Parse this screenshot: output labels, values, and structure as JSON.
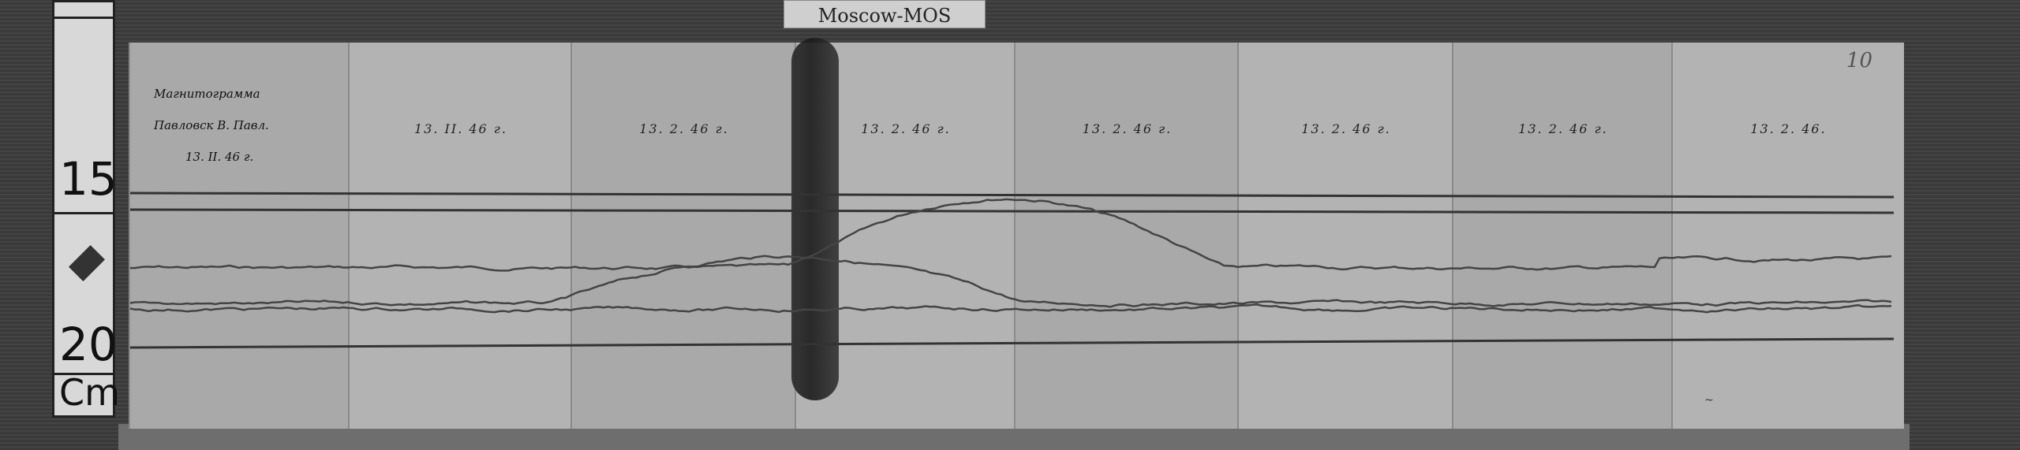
{
  "scale_ruler": {
    "marks": [
      "15",
      "20"
    ],
    "unit": "Cm"
  },
  "station_label": "Moscow-MOS",
  "header_note": [
    "Магнитограмма",
    "Павловск В. Павл.",
    "13. II. 46 г."
  ],
  "strips": [
    {
      "date": ""
    },
    {
      "date": "13. II. 46 г."
    },
    {
      "date": "13. 2. 46 г."
    },
    {
      "date": "13. 2. 46 г."
    },
    {
      "date": "13. 2. 46 г."
    },
    {
      "date": "13. 2. 46 г."
    },
    {
      "date": "13. 2. 46 г."
    },
    {
      "date": "13. 2. 46."
    }
  ],
  "page_number": "10"
}
